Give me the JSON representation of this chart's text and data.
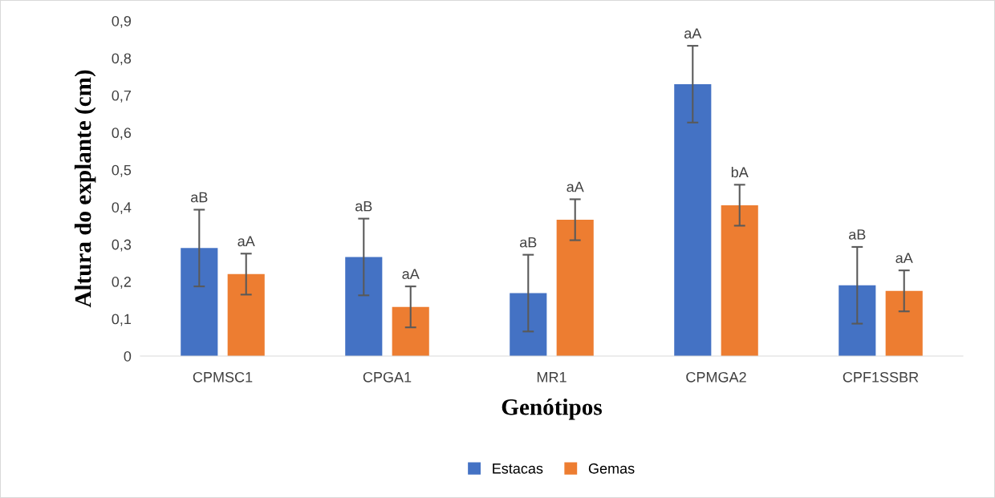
{
  "chart_data": {
    "type": "bar",
    "xlabel": "Genótipos",
    "ylabel": "Altura do explante (cm)",
    "categories": [
      "CPMSC1",
      "CPGA1",
      "MR1",
      "CPMGA2",
      "CPF1SSBR"
    ],
    "series": [
      {
        "name": "Estacas",
        "color": "#4472c4",
        "values": [
          0.29,
          0.266,
          0.169,
          0.73,
          0.19
        ],
        "errors": [
          0.103,
          0.103,
          0.103,
          0.103,
          0.103
        ],
        "value_labels": [
          "aB",
          "aB",
          "aB",
          "aA",
          "aB"
        ]
      },
      {
        "name": "Gemas",
        "color": "#ed7d31",
        "values": [
          0.22,
          0.132,
          0.366,
          0.405,
          0.175
        ],
        "errors": [
          0.055,
          0.055,
          0.055,
          0.055,
          0.055
        ],
        "value_labels": [
          "aA",
          "aA",
          "aA",
          "bA",
          "aA"
        ]
      }
    ],
    "ylim": [
      0,
      0.9
    ],
    "yticks": [
      {
        "value": 0,
        "label": "0"
      },
      {
        "value": 0.1,
        "label": "0,1"
      },
      {
        "value": 0.2,
        "label": "0,2"
      },
      {
        "value": 0.3,
        "label": "0,3"
      },
      {
        "value": 0.4,
        "label": "0,4"
      },
      {
        "value": 0.5,
        "label": "0,5"
      },
      {
        "value": 0.6,
        "label": "0,6"
      },
      {
        "value": 0.7,
        "label": "0,7"
      },
      {
        "value": 0.8,
        "label": "0,8"
      },
      {
        "value": 0.9,
        "label": "0,9"
      }
    ],
    "grid": false,
    "legend": "bottom"
  }
}
